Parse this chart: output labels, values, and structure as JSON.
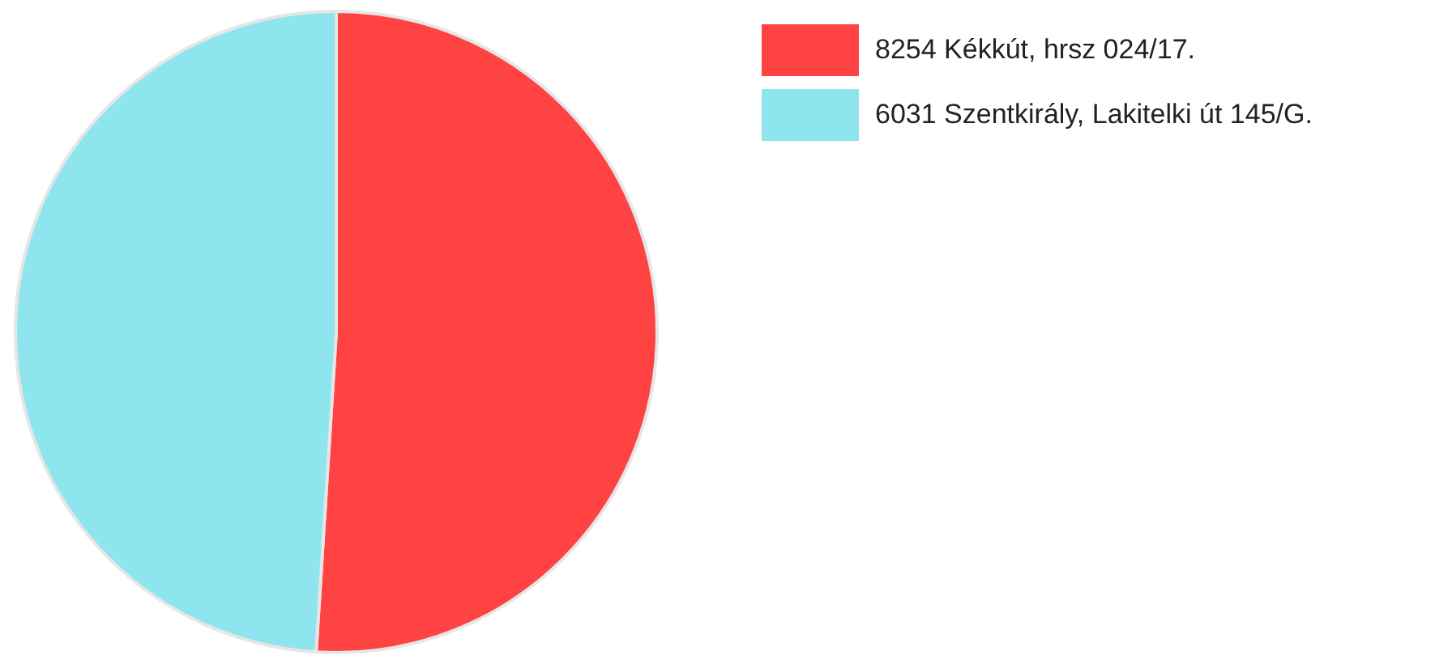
{
  "chart_data": {
    "type": "pie",
    "categories": [
      "8254 Kékkút, hrsz 024/17.",
      "6031 Szentkirály, Lakitelki út 145/G."
    ],
    "values": [
      51,
      49
    ],
    "colors": [
      "#ff4343",
      "#8ee5ed"
    ],
    "legend": "top right"
  }
}
